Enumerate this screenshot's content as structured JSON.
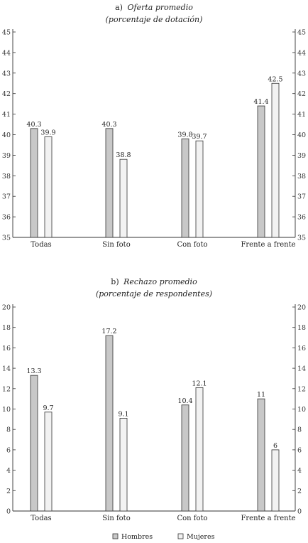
{
  "legend": {
    "items": [
      {
        "label": "Hombres",
        "color": "#c8c8c8"
      },
      {
        "label": "Mujeres",
        "color": "#f2f2f2"
      }
    ]
  },
  "chart_data": [
    {
      "type": "bar",
      "title_prefix": "a)",
      "title": "Oferta promedio",
      "subtitle": "(porcentaje de dotación)",
      "categories": [
        "Todas",
        "Sin foto",
        "Con foto",
        "Frente a frente"
      ],
      "series": [
        {
          "name": "Hombres",
          "values": [
            40.3,
            40.3,
            39.8,
            41.4
          ],
          "color": "#c8c8c8"
        },
        {
          "name": "Mujeres",
          "values": [
            39.9,
            38.8,
            39.7,
            42.5
          ],
          "color": "#f2f2f2"
        }
      ],
      "value_labels": [
        [
          "40.3",
          "40.3",
          "39.8",
          "41.4"
        ],
        [
          "39.9",
          "38.8",
          "39.7",
          "42.5"
        ]
      ],
      "ylim": [
        35,
        45
      ],
      "yticks": [
        35,
        36,
        37,
        38,
        39,
        40,
        41,
        42,
        43,
        44,
        45
      ],
      "grid": false,
      "axes": "left-and-right"
    },
    {
      "type": "bar",
      "title_prefix": "b)",
      "title": "Rechazo promedio",
      "subtitle": "(porcentaje de respondentes)",
      "categories": [
        "Todas",
        "Sin foto",
        "Con foto",
        "Frente a frente"
      ],
      "series": [
        {
          "name": "Hombres",
          "values": [
            13.3,
            17.2,
            10.4,
            11
          ],
          "color": "#c8c8c8"
        },
        {
          "name": "Mujeres",
          "values": [
            9.7,
            9.1,
            12.1,
            6
          ],
          "color": "#f2f2f2"
        }
      ],
      "value_labels": [
        [
          "13.3",
          "17.2",
          "10.4",
          "11"
        ],
        [
          "9.7",
          "9.1",
          "12.1",
          "6"
        ]
      ],
      "ylim": [
        0,
        20
      ],
      "yticks": [
        0,
        2,
        4,
        6,
        8,
        10,
        12,
        14,
        16,
        18,
        20
      ],
      "grid": false,
      "axes": "left-and-right"
    }
  ]
}
